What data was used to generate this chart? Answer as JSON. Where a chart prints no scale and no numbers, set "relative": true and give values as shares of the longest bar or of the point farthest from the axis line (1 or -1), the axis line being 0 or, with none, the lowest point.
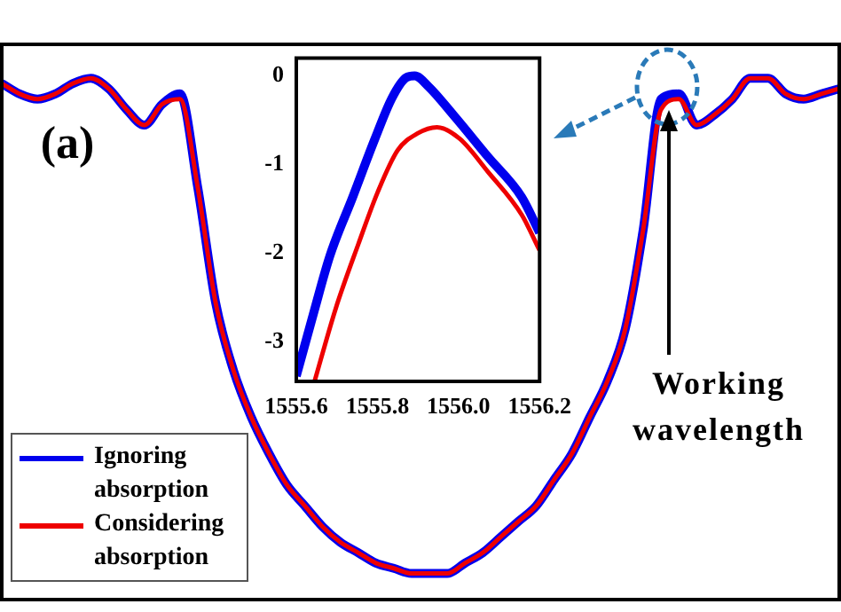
{
  "chart_data": [
    {
      "type": "line",
      "relative": true,
      "tick_labels": false,
      "legend": "bottom left",
      "categories": [
        null,
        null,
        null,
        null,
        null,
        null,
        null,
        null,
        null,
        null,
        null,
        null,
        null,
        null,
        null,
        null,
        null,
        null,
        null,
        null,
        null,
        null,
        null,
        null,
        null,
        null,
        null,
        null,
        null,
        null,
        null,
        null,
        null,
        null,
        null,
        null,
        null,
        null,
        null,
        null,
        null,
        null,
        null,
        null,
        null,
        null,
        null,
        null
      ],
      "series": [
        {
          "name": "Ignoring absorption",
          "color": "#0000ee",
          "values": [
            0.99,
            0.97,
            0.96,
            0.97,
            0.99,
            1,
            0.98,
            0.94,
            0.91,
            0.95,
            0.97,
            0.79,
            0.57,
            0.44,
            0.35,
            0.28,
            0.22,
            0.18,
            0.14,
            0.11,
            0.09,
            0.07,
            0.06,
            0.05,
            0.05,
            0.05,
            0.07,
            0.09,
            0.12,
            0.15,
            0.18,
            0.23,
            0.28,
            0.35,
            0.42,
            0.52,
            0.71,
            0.96,
            0.97,
            0.91,
            0.93,
            0.96,
            1,
            1,
            0.97,
            0.96,
            0.97,
            0.98
          ]
        },
        {
          "name": "Considering absorption",
          "color": "#ee0000",
          "values": [
            0.99,
            0.97,
            0.96,
            0.97,
            0.99,
            1,
            0.98,
            0.94,
            0.91,
            0.95,
            0.96,
            0.79,
            0.57,
            0.44,
            0.35,
            0.28,
            0.22,
            0.18,
            0.14,
            0.11,
            0.09,
            0.07,
            0.06,
            0.05,
            0.05,
            0.05,
            0.07,
            0.09,
            0.12,
            0.15,
            0.18,
            0.23,
            0.28,
            0.35,
            0.42,
            0.52,
            0.71,
            0.94,
            0.96,
            0.91,
            0.93,
            0.96,
            1,
            1,
            0.97,
            0.96,
            0.97,
            0.98
          ]
        }
      ],
      "annotations": [
        "(a)",
        "Working wavelength"
      ]
    },
    {
      "type": "line",
      "xlim": [
        1555.6,
        1556.2
      ],
      "ylim": [
        -3.45,
        0.2
      ],
      "xticks": [
        1555.6,
        1555.8,
        {
          "value": 1556,
          "label": "1556.0"
        },
        1556.2
      ],
      "yticks": [
        -3,
        -2,
        -1,
        0
      ],
      "series": [
        {
          "color": "#0000ee",
          "x": [
            1555.6,
            1555.642,
            1555.683,
            1555.739,
            1555.794,
            1555.836,
            1555.871,
            1555.892,
            1555.926,
            1555.989,
            1556.072,
            1556.156,
            1556.2
          ],
          "values": [
            -3.39,
            -2.69,
            -2.03,
            -1.37,
            -0.71,
            -0.25,
            -0.02,
            0,
            -0.12,
            -0.45,
            -0.91,
            -1.37,
            -1.77
          ]
        },
        {
          "color": "#ee0000",
          "x": [
            1555.645,
            1555.697,
            1555.753,
            1555.801,
            1555.85,
            1555.899,
            1555.947,
            1556.003,
            1556.072,
            1556.156,
            1556.2
          ],
          "values": [
            -3.45,
            -2.63,
            -1.9,
            -1.31,
            -0.84,
            -0.65,
            -0.58,
            -0.71,
            -1.08,
            -1.57,
            -1.97
          ]
        }
      ]
    }
  ]
}
